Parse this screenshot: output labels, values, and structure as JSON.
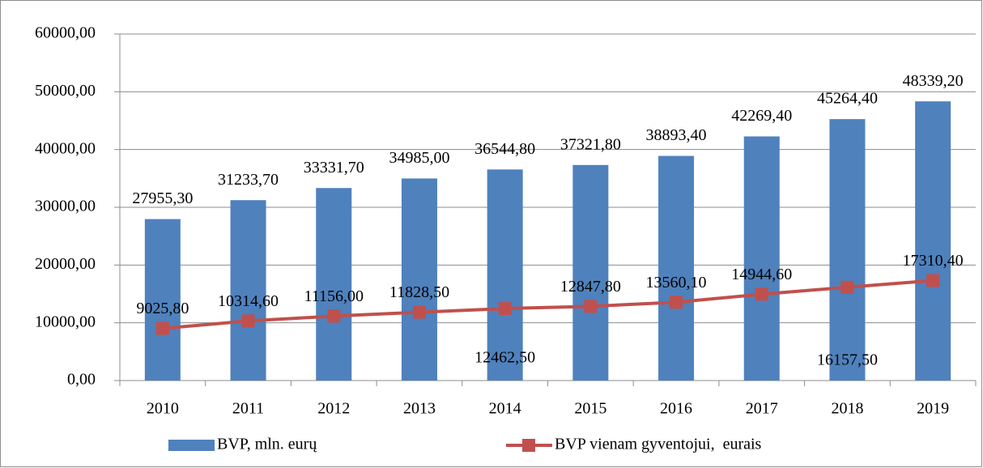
{
  "chart_data": {
    "type": "bar_line",
    "categories": [
      "2010",
      "2011",
      "2012",
      "2013",
      "2014",
      "2015",
      "2016",
      "2017",
      "2018",
      "2019"
    ],
    "series": [
      {
        "name": "BVP, mln. eurų",
        "type": "bar",
        "color": "#4f81bd",
        "values": [
          27955.3,
          31233.7,
          33331.7,
          34985.0,
          36544.8,
          37321.8,
          38893.4,
          42269.4,
          45264.4,
          48339.2
        ],
        "value_labels": [
          "27955,30",
          "31233,70",
          "33331,70",
          "34985,00",
          "36544,80",
          "37321,80",
          "38893,40",
          "42269,40",
          "45264,40",
          "48339,20"
        ]
      },
      {
        "name": "BVP vienam gyventojui,  eurais",
        "type": "line",
        "color": "#c0504d",
        "values": [
          9025.8,
          10314.6,
          11156.0,
          11828.5,
          12462.5,
          12847.8,
          13560.1,
          14944.6,
          16157.5,
          17310.4
        ],
        "value_labels": [
          "9025,80",
          "10314,60",
          "11156,00",
          "11828,50",
          "12462,50",
          "12847,80",
          "13560,10",
          "14944,60",
          "16157,50",
          "17310,40"
        ]
      }
    ],
    "ylim": [
      0,
      60000
    ],
    "yticks": [
      {
        "value": 0,
        "label": "0,00"
      },
      {
        "value": 10000,
        "label": "10000,00"
      },
      {
        "value": 20000,
        "label": "20000,00"
      },
      {
        "value": 30000,
        "label": "30000,00"
      },
      {
        "value": 40000,
        "label": "40000,00"
      },
      {
        "value": 50000,
        "label": "50000,00"
      },
      {
        "value": 60000,
        "label": "60000,00"
      }
    ],
    "grid": true,
    "legend": "bottom"
  }
}
